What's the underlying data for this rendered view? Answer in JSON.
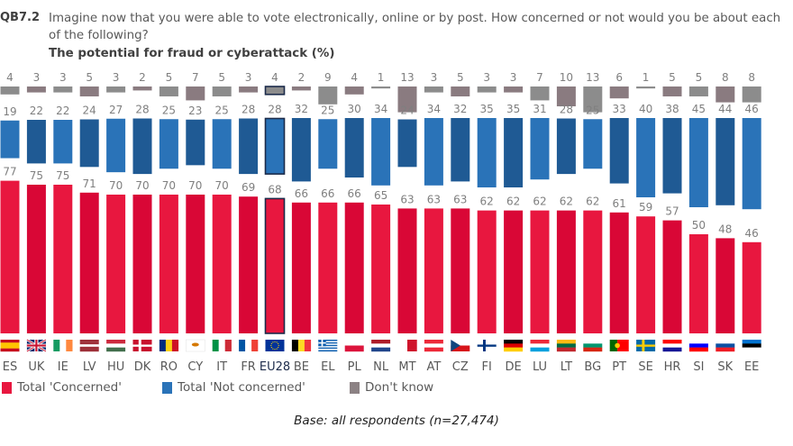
{
  "header": {
    "question_id": "QB7.2",
    "question_text": "Imagine now that you were able to vote electronically, online or by post. How concerned or not would you be about each of the following?",
    "subtitle": "The potential for fraud or cyberattack (%)"
  },
  "colors": {
    "concerned": "#e8173f",
    "concerned_alt": "#d90736",
    "not_concerned": "#2a73b8",
    "not_concerned_alt": "#1f5a94",
    "dont_know": "#8c8c8c",
    "dont_know_alt": "#8a7b80",
    "highlight_border": "#1c2b4a"
  },
  "legend": [
    {
      "label": "Total 'Concerned'",
      "color": "#e8173f"
    },
    {
      "label": "Total 'Not concerned'",
      "color": "#2a73b8"
    },
    {
      "label": "Don't know",
      "color": "#8c8284"
    }
  ],
  "footer": {
    "base_note": "Base: all respondents (n=27,474)"
  },
  "chart_data": {
    "type": "bar",
    "title": "The potential for fraud or cyberattack (%)",
    "xlabel": "",
    "ylabel": "",
    "ylim": [
      0,
      100
    ],
    "grid": false,
    "legend_position": "bottom-left",
    "highlight_category": "EU28",
    "categories": [
      "ES",
      "UK",
      "IE",
      "LV",
      "HU",
      "DK",
      "RO",
      "CY",
      "IT",
      "FR",
      "EU28",
      "BE",
      "EL",
      "PL",
      "NL",
      "MT",
      "AT",
      "CZ",
      "FI",
      "DE",
      "LU",
      "LT",
      "BG",
      "PT",
      "SE",
      "HR",
      "SI",
      "SK",
      "EE"
    ],
    "series": [
      {
        "name": "Total 'Concerned'",
        "values": [
          77,
          75,
          75,
          71,
          70,
          70,
          70,
          70,
          70,
          69,
          68,
          66,
          66,
          66,
          65,
          63,
          63,
          63,
          62,
          62,
          62,
          62,
          62,
          61,
          59,
          57,
          50,
          48,
          46
        ]
      },
      {
        "name": "Total 'Not concerned'",
        "values": [
          19,
          22,
          22,
          24,
          27,
          28,
          25,
          23,
          25,
          28,
          28,
          32,
          25,
          30,
          34,
          24,
          34,
          32,
          35,
          35,
          31,
          28,
          25,
          33,
          40,
          38,
          45,
          44,
          46
        ]
      },
      {
        "name": "Don't know",
        "values": [
          4,
          3,
          3,
          5,
          3,
          2,
          5,
          7,
          5,
          3,
          4,
          2,
          9,
          4,
          1,
          13,
          3,
          5,
          3,
          3,
          7,
          10,
          13,
          6,
          1,
          5,
          5,
          8,
          8
        ]
      }
    ],
    "flag_icons": [
      "flag-es",
      "flag-uk",
      "flag-ie",
      "flag-lv",
      "flag-hu",
      "flag-dk",
      "flag-ro",
      "flag-cy",
      "flag-it",
      "flag-fr",
      "flag-eu",
      "flag-be",
      "flag-el",
      "flag-pl",
      "flag-nl",
      "flag-mt",
      "flag-at",
      "flag-cz",
      "flag-fi",
      "flag-de",
      "flag-lu",
      "flag-lt",
      "flag-bg",
      "flag-pt",
      "flag-se",
      "flag-hr",
      "flag-si",
      "flag-sk",
      "flag-ee"
    ]
  }
}
